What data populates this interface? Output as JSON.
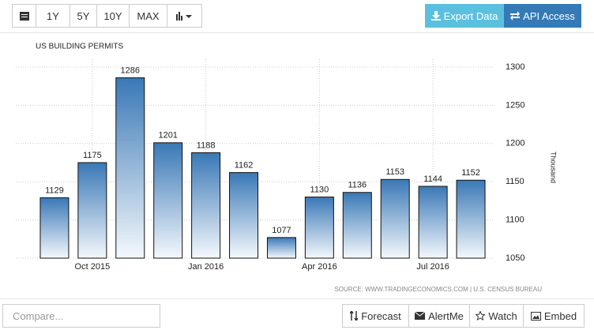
{
  "toolbar": {
    "ranges": [
      "1Y",
      "5Y",
      "10Y",
      "MAX"
    ],
    "export": "Export Data",
    "api": "API Access"
  },
  "chart_data": {
    "type": "bar",
    "title": "US BUILDING PERMITS",
    "categories": [
      null,
      "Oct 2015",
      null,
      null,
      "Jan 2016",
      null,
      null,
      "Apr 2016",
      null,
      null,
      "Jul 2016",
      null
    ],
    "values": [
      1129,
      1175,
      1286,
      1201,
      1188,
      1162,
      1077,
      1130,
      1136,
      1153,
      1144,
      1152
    ],
    "color": "#3a78b6",
    "ylim": [
      1050,
      1300
    ],
    "yticks": [
      1050,
      1100,
      1150,
      1200,
      1250,
      1300
    ],
    "ylabel": "Thousand",
    "grid": true,
    "source": "SOURCE: WWW.TRADINGECONOMICS.COM | U.S. CENSUS BUREAU"
  },
  "footer": {
    "compare": "Compare...",
    "buttons": [
      "Forecast",
      "AlertMe",
      "Watch",
      "Embed"
    ]
  }
}
